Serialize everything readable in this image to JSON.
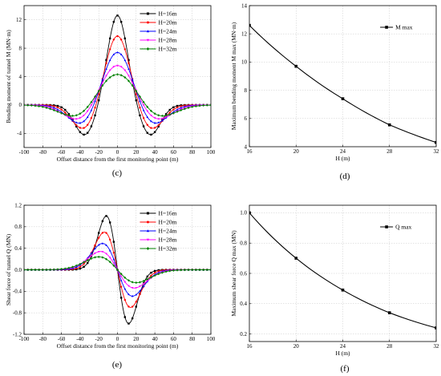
{
  "chart_data": [
    {
      "type": "line",
      "panel": "(c)",
      "xlabel": "Offset distance from the first monitoring point (m)",
      "ylabel": "Bending moment of tunnel M (MN·m)",
      "xlim": [
        -100,
        100
      ],
      "ylim": [
        -6,
        14
      ],
      "xticks": [
        -100,
        -80,
        -60,
        -40,
        -20,
        0,
        20,
        40,
        60,
        80,
        100
      ],
      "yticks": [
        -4,
        0,
        4,
        8,
        12
      ],
      "legend_position": "top-right",
      "series": [
        {
          "name": "H=16m",
          "color": "#000000",
          "peak": 12.6,
          "trough": -4.2,
          "trough_x": 35,
          "width": 10.5,
          "marker": "square"
        },
        {
          "name": "H=20m",
          "color": "#ff0000",
          "peak": 9.7,
          "trough": -3.3,
          "trough_x": 36,
          "width": 12.5,
          "marker": "circle"
        },
        {
          "name": "H=24m",
          "color": "#0000ff",
          "peak": 7.4,
          "trough": -2.55,
          "trough_x": 38,
          "width": 14.5,
          "marker": "triangle"
        },
        {
          "name": "H=28m",
          "color": "#ff00ff",
          "peak": 5.55,
          "trough": -1.95,
          "trough_x": 40,
          "width": 16.5,
          "marker": "triangle-down"
        },
        {
          "name": "H=32m",
          "color": "#008000",
          "peak": 4.3,
          "trough": -1.5,
          "trough_x": 42,
          "width": 18.5,
          "marker": "diamond"
        }
      ]
    },
    {
      "type": "line",
      "panel": "(d)",
      "xlabel": "H (m)",
      "ylabel": "Maximum bending moment M max (MN·m)",
      "xlim": [
        16,
        32
      ],
      "ylim": [
        4,
        14
      ],
      "xticks": [
        16,
        20,
        24,
        28,
        32
      ],
      "yticks": [
        4,
        6,
        8,
        10,
        12,
        14
      ],
      "legend_position": "top-right",
      "series": [
        {
          "name": "M max",
          "color": "#000000",
          "marker": "square",
          "x": [
            16,
            20,
            24,
            28,
            32
          ],
          "y": [
            12.6,
            9.7,
            7.4,
            5.55,
            4.3
          ]
        }
      ]
    },
    {
      "type": "line",
      "panel": "(e)",
      "xlabel": "Offset distance from the first monitoring point (m)",
      "ylabel": "Shear force of tunnel Q (MN)",
      "xlim": [
        -100,
        100
      ],
      "ylim": [
        -1.2,
        1.2
      ],
      "xticks": [
        -100,
        -80,
        -60,
        -40,
        -20,
        0,
        20,
        40,
        60,
        80,
        100
      ],
      "yticks": [
        -1.2,
        -0.8,
        -0.4,
        0.0,
        0.4,
        0.8,
        1.2
      ],
      "legend_position": "top-right",
      "series": [
        {
          "name": "H=16m",
          "color": "#000000",
          "peak": 1.0,
          "width": 12,
          "marker": "square"
        },
        {
          "name": "H=20m",
          "color": "#ff0000",
          "peak": 0.7,
          "width": 14,
          "marker": "circle"
        },
        {
          "name": "H=24m",
          "color": "#0000ff",
          "peak": 0.49,
          "width": 16,
          "marker": "triangle"
        },
        {
          "name": "H=28m",
          "color": "#ff00ff",
          "peak": 0.34,
          "width": 18,
          "marker": "triangle-down"
        },
        {
          "name": "H=32m",
          "color": "#008000",
          "peak": 0.24,
          "width": 20,
          "marker": "diamond"
        }
      ]
    },
    {
      "type": "line",
      "panel": "(f)",
      "xlabel": "H (m)",
      "ylabel": "Maximum shear force Q max (MN)",
      "xlim": [
        16,
        32
      ],
      "ylim": [
        0.15,
        1.05
      ],
      "xticks": [
        16,
        20,
        24,
        28,
        32
      ],
      "yticks": [
        0.2,
        0.4,
        0.6,
        0.8,
        1.0
      ],
      "legend_position": "top-right",
      "series": [
        {
          "name": "Q max",
          "color": "#000000",
          "marker": "square",
          "x": [
            16,
            20,
            24,
            28,
            32
          ],
          "y": [
            1.0,
            0.7,
            0.49,
            0.34,
            0.24
          ]
        }
      ]
    }
  ]
}
